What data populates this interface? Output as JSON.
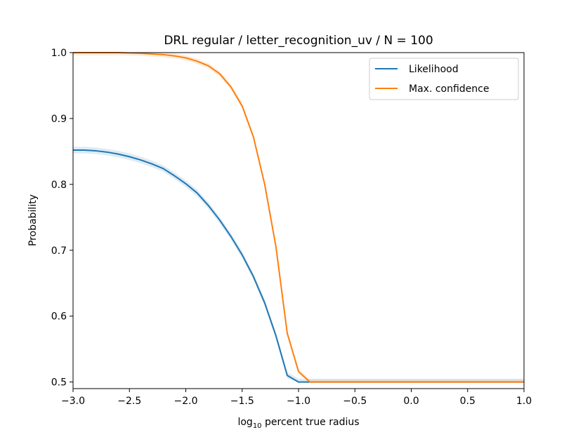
{
  "chart_data": {
    "type": "line",
    "title": "DRL regular / letter_recognition_uv / N = 100",
    "xlabel_main": "log",
    "xlabel_sub": "10",
    "xlabel_rest": " percent true radius",
    "ylabel": "Probability",
    "xlim": [
      -3.0,
      1.0
    ],
    "ylim": [
      0.49,
      1.0
    ],
    "x_ticks": [
      -3.0,
      -2.5,
      -2.0,
      -1.5,
      -1.0,
      -0.5,
      0.0,
      0.5,
      1.0
    ],
    "x_tick_labels": [
      "−3.0",
      "−2.5",
      "−2.0",
      "−1.5",
      "−1.0",
      "−0.5",
      "0.0",
      "0.5",
      "1.0"
    ],
    "y_ticks": [
      0.5,
      0.6,
      0.7,
      0.8,
      0.9,
      1.0
    ],
    "y_tick_labels": [
      "0.5",
      "0.6",
      "0.7",
      "0.8",
      "0.9",
      "1.0"
    ],
    "grid": false,
    "legend_position": "top-right",
    "series": [
      {
        "name": "Likelihood",
        "color": "#1f77b4",
        "x": [
          -3.0,
          -2.9,
          -2.8,
          -2.7,
          -2.6,
          -2.5,
          -2.4,
          -2.3,
          -2.2,
          -2.1,
          -2.0,
          -1.9,
          -1.8,
          -1.7,
          -1.6,
          -1.5,
          -1.4,
          -1.3,
          -1.2,
          -1.1,
          -1.0,
          -0.9,
          -0.8,
          -0.7,
          -0.6,
          -0.5,
          -0.4,
          -0.3,
          -0.2,
          -0.1,
          0.0,
          0.1,
          0.2,
          0.3,
          0.4,
          0.5,
          0.6,
          0.7,
          0.8,
          0.9,
          1.0
        ],
        "y": [
          0.852,
          0.852,
          0.851,
          0.849,
          0.846,
          0.842,
          0.837,
          0.831,
          0.824,
          0.813,
          0.801,
          0.787,
          0.768,
          0.746,
          0.721,
          0.693,
          0.66,
          0.62,
          0.57,
          0.51,
          0.5,
          0.5,
          0.5,
          0.5,
          0.5,
          0.5,
          0.5,
          0.5,
          0.5,
          0.5,
          0.5,
          0.5,
          0.5,
          0.5,
          0.5,
          0.5,
          0.5,
          0.5,
          0.5,
          0.5,
          0.5
        ],
        "band": 0.005
      },
      {
        "name": "Max. confidence",
        "color": "#ff7f0e",
        "x": [
          -3.0,
          -2.8,
          -2.6,
          -2.4,
          -2.2,
          -2.1,
          -2.0,
          -1.9,
          -1.8,
          -1.7,
          -1.6,
          -1.5,
          -1.4,
          -1.3,
          -1.2,
          -1.1,
          -1.0,
          -0.9,
          -0.8,
          -0.5,
          0.0,
          0.5,
          1.0
        ],
        "y": [
          1.0,
          1.0,
          1.0,
          0.999,
          0.997,
          0.995,
          0.992,
          0.987,
          0.98,
          0.968,
          0.948,
          0.919,
          0.872,
          0.8,
          0.705,
          0.574,
          0.516,
          0.5,
          0.5,
          0.5,
          0.5,
          0.5,
          0.5
        ],
        "band": 0.004
      }
    ]
  }
}
